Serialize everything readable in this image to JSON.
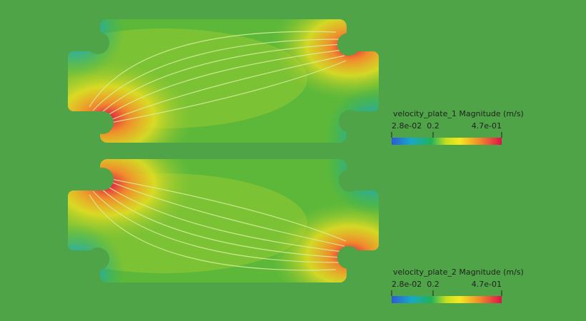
{
  "legends": [
    {
      "title": "velocity_plate_1 Magnitude  (m/s)",
      "ticks": [
        "2.8e-02",
        "0.2",
        "4.7e-01"
      ]
    },
    {
      "title": "velocity_plate_2 Magnitude  (m/s)",
      "ticks": [
        "2.8e-02",
        "0.2",
        "4.7e-01"
      ]
    }
  ]
}
